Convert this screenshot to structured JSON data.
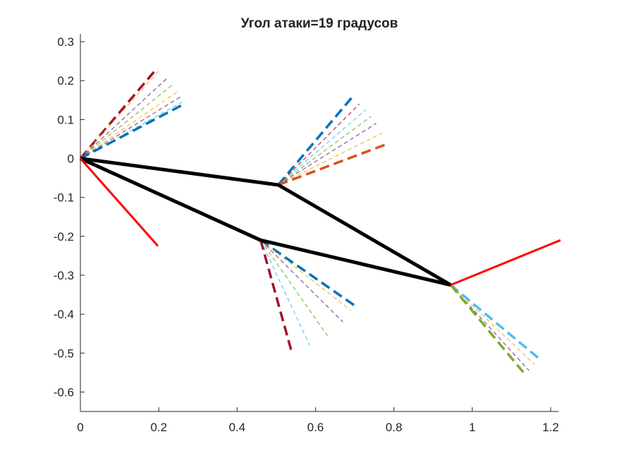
{
  "chart_data": {
    "type": "line",
    "title": "Угол атаки=19 градусов",
    "xlabel": "",
    "ylabel": "",
    "xlim": [
      0,
      1.22
    ],
    "ylim": [
      -0.65,
      0.32
    ],
    "xticks": [
      0,
      0.2,
      0.4,
      0.6,
      0.8,
      1,
      1.2
    ],
    "xtick_labels": [
      "0",
      "0.2",
      "0.4",
      "0.6",
      "0.8",
      "1",
      "1.2"
    ],
    "yticks": [
      0.3,
      0.2,
      0.1,
      0,
      -0.1,
      -0.2,
      -0.3,
      -0.4,
      -0.5,
      -0.6
    ],
    "ytick_labels": [
      "0.3",
      "0.2",
      "0.1",
      "0",
      "-0.1",
      "-0.2",
      "-0.3",
      "-0.4",
      "-0.5",
      "-0.6"
    ],
    "grid": false,
    "legend": false,
    "series": [
      {
        "color": "#000000",
        "style": "solid",
        "width": 5,
        "x": [
          0,
          0.505,
          0.945,
          0.46,
          0
        ],
        "y": [
          0,
          -0.068,
          -0.325,
          -0.21,
          0
        ]
      },
      {
        "color": "#ff0000",
        "style": "solid",
        "width": 3,
        "x": [
          0,
          0.198
        ],
        "y": [
          0,
          -0.225
        ]
      },
      {
        "color": "#ff0000",
        "style": "solid",
        "width": 3,
        "x": [
          0.945,
          1.225
        ],
        "y": [
          -0.325,
          -0.21
        ]
      }
    ],
    "fans": [
      {
        "origin": [
          0,
          0
        ],
        "rays": [
          {
            "end": [
              0.196,
              0.232
            ],
            "color": "#a2142f",
            "width": 3.5
          },
          {
            "end": [
              0.2,
              0.225
            ],
            "color": "#edb120",
            "width": 1
          },
          {
            "end": [
              0.22,
              0.205
            ],
            "color": "#7e2f8e",
            "width": 1
          },
          {
            "end": [
              0.236,
              0.19
            ],
            "color": "#77ac30",
            "width": 1
          },
          {
            "end": [
              0.25,
              0.173
            ],
            "color": "#edb120",
            "width": 1
          },
          {
            "end": [
              0.255,
              0.158
            ],
            "color": "#7e2f8e",
            "width": 1
          },
          {
            "end": [
              0.26,
              0.145
            ],
            "color": "#4dbeee",
            "width": 1
          },
          {
            "end": [
              0.265,
              0.14
            ],
            "color": "#0072bd",
            "width": 3.5
          }
        ]
      },
      {
        "origin": [
          0.505,
          -0.068
        ],
        "rays": [
          {
            "end": [
              0.698,
              0.163
            ],
            "color": "#0072bd",
            "width": 3.5
          },
          {
            "end": [
              0.712,
              0.14
            ],
            "color": "#a2142f",
            "width": 1
          },
          {
            "end": [
              0.728,
              0.125
            ],
            "color": "#4dbeee",
            "width": 1
          },
          {
            "end": [
              0.742,
              0.108
            ],
            "color": "#77ac30",
            "width": 1
          },
          {
            "end": [
              0.755,
              0.09
            ],
            "color": "#7e2f8e",
            "width": 1
          },
          {
            "end": [
              0.77,
              0.065
            ],
            "color": "#edb120",
            "width": 1
          },
          {
            "end": [
              0.785,
              0.038
            ],
            "color": "#d95319",
            "width": 3.5
          }
        ]
      },
      {
        "origin": [
          0.46,
          -0.21
        ],
        "rays": [
          {
            "end": [
              0.703,
              -0.38
            ],
            "color": "#0072bd",
            "width": 3.5
          },
          {
            "end": [
              0.69,
              -0.39
            ],
            "color": "#edb120",
            "width": 1
          },
          {
            "end": [
              0.67,
              -0.42
            ],
            "color": "#7e2f8e",
            "width": 1
          },
          {
            "end": [
              0.63,
              -0.455
            ],
            "color": "#77ac30",
            "width": 1
          },
          {
            "end": [
              0.585,
              -0.48
            ],
            "color": "#4dbeee",
            "width": 1
          },
          {
            "end": [
              0.54,
              -0.5
            ],
            "color": "#a2142f",
            "width": 3.5
          }
        ]
      },
      {
        "origin": [
          0.945,
          -0.325
        ],
        "rays": [
          {
            "end": [
              1.175,
              -0.518
            ],
            "color": "#4dbeee",
            "width": 3.5
          },
          {
            "end": [
              1.16,
              -0.53
            ],
            "color": "#edb120",
            "width": 1
          },
          {
            "end": [
              1.145,
              -0.545
            ],
            "color": "#7e2f8e",
            "width": 1
          },
          {
            "end": [
              1.135,
              -0.555
            ],
            "color": "#77ac30",
            "width": 3.5
          }
        ]
      }
    ]
  }
}
